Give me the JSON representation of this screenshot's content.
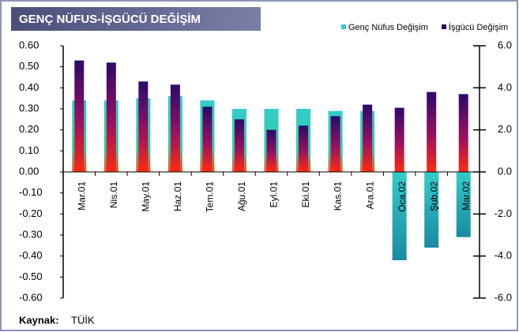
{
  "chart_data": {
    "type": "bar",
    "title": "GENÇ NÜFUS-İŞGÜCÜ  DEĞİŞİM",
    "source_label": "Kaynak:",
    "source": "TÜİK",
    "categories": [
      "Mar.01",
      "Nis.01",
      "May.01",
      "Haz.01",
      "Tem.01",
      "Ağu.01",
      "Eyl.01",
      "Eki.01",
      "Kas.01",
      "Ara.01",
      "Oca.02",
      "Şub.02",
      "Mar.02"
    ],
    "series": [
      {
        "name": "Genç Nüfus Değişim",
        "color": "#33cccc",
        "values": [
          0.34,
          0.34,
          0.35,
          0.36,
          0.34,
          0.3,
          0.3,
          0.3,
          0.29,
          0.29,
          -0.42,
          -0.36,
          -0.31
        ]
      },
      {
        "name": "İşgücü Değişim",
        "color": "#330066",
        "axis": "y2",
        "values": [
          5.3,
          5.2,
          4.3,
          4.15,
          3.1,
          2.5,
          2.0,
          2.2,
          2.65,
          3.2,
          3.05,
          3.8,
          3.7
        ]
      }
    ],
    "ylim": [
      -0.6,
      0.6
    ],
    "yticks": [
      {
        "value": 0.6,
        "label": "0.60"
      },
      {
        "value": 0.5,
        "label": "0.50"
      },
      {
        "value": 0.4,
        "label": "0.40"
      },
      {
        "value": 0.3,
        "label": "0.30"
      },
      {
        "value": 0.2,
        "label": "0.20"
      },
      {
        "value": 0.1,
        "label": "0.10"
      },
      {
        "value": 0,
        "label": "0.00"
      },
      {
        "value": -0.1,
        "label": "-0.10"
      },
      {
        "value": -0.2,
        "label": "-0.20"
      },
      {
        "value": -0.3,
        "label": "-0.30"
      },
      {
        "value": -0.4,
        "label": "-0.40"
      },
      {
        "value": -0.5,
        "label": "-0.50"
      },
      {
        "value": -0.6,
        "label": "-0.60"
      }
    ],
    "y2lim": [
      -6,
      6
    ],
    "y2ticks": [
      {
        "value": 6,
        "label": "6.0"
      },
      {
        "value": 4,
        "label": "4.0"
      },
      {
        "value": 2,
        "label": "2.0"
      },
      {
        "value": 0,
        "label": "0.0"
      },
      {
        "value": -2,
        "label": "-2.0"
      },
      {
        "value": -4,
        "label": "-4.0"
      },
      {
        "value": -6,
        "label": "-6.0"
      }
    ]
  }
}
